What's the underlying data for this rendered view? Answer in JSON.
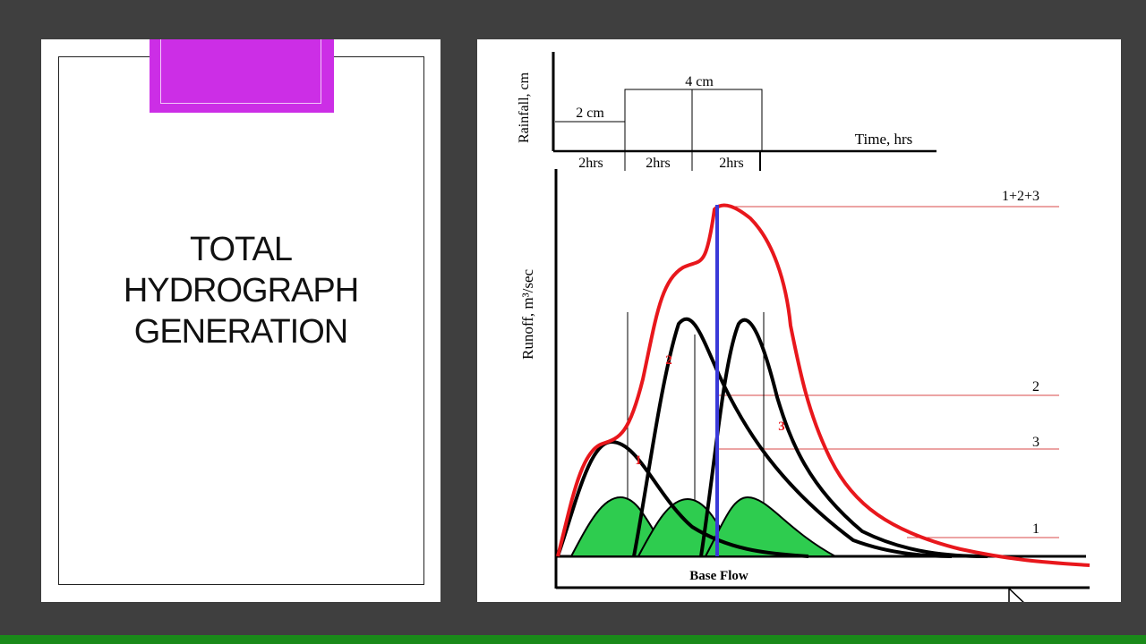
{
  "slide": {
    "title_lines": [
      "TOTAL",
      "HYDROGRAPH",
      "GENERATION"
    ]
  },
  "diagram": {
    "rainfall_axis_label": "Rainfall, cm",
    "rainfall_values": [
      "2 cm",
      "4 cm"
    ],
    "time_axis_label": "Time, hrs",
    "time_intervals": [
      "2hrs",
      "2hrs",
      "2hrs"
    ],
    "runoff_axis_label": "Runoff, m³/sec",
    "base_flow_label": "Base Flow",
    "peak_labels": [
      "1+2+3",
      "2",
      "3",
      "1"
    ],
    "curve_labels": [
      "1",
      "2",
      "3"
    ],
    "colors": {
      "total_hydrograph": "#e8171c",
      "peak_line": "#3a3ad8",
      "unit_fill": "#2ecc4f",
      "reference_lines": "#d94a4a",
      "curves": "#000000"
    }
  }
}
